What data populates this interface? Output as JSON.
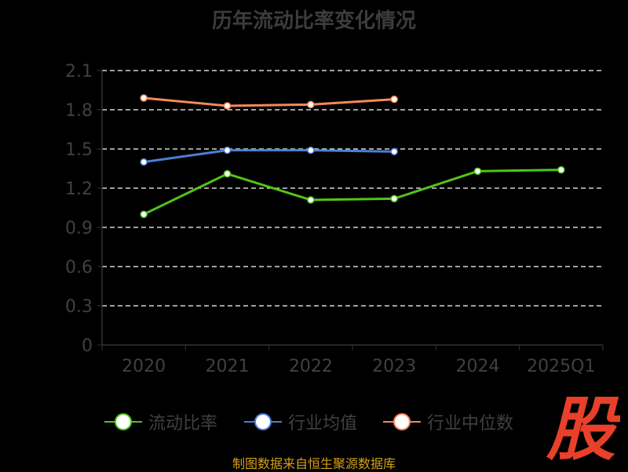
{
  "chart_data": {
    "type": "line",
    "title": "历年流动比率变化情况",
    "categories": [
      "2020",
      "2021",
      "2022",
      "2023",
      "2024",
      "2025Q1"
    ],
    "y_ticks": [
      "0",
      "0.3",
      "0.6",
      "0.9",
      "1.2",
      "1.5",
      "1.8",
      "2.1"
    ],
    "ylim": [
      0,
      2.1
    ],
    "grid": true,
    "legend_position": "bottom",
    "series": [
      {
        "name": "流动比率",
        "color": "#52c41a",
        "values": [
          1.0,
          1.31,
          1.11,
          1.12,
          1.33,
          1.34
        ]
      },
      {
        "name": "行业均值",
        "color": "#4a7fd6",
        "values": [
          1.4,
          1.49,
          1.49,
          1.48,
          null,
          null
        ]
      },
      {
        "name": "行业中位数",
        "color": "#f5895a",
        "values": [
          1.89,
          1.83,
          1.84,
          1.88,
          null,
          null
        ]
      }
    ]
  },
  "footer": {
    "source_text": "制图数据来自恒生聚源数据库",
    "watermark_char": "股"
  },
  "colors": {
    "axis": "#333333",
    "tick_label": "#404040",
    "grid": "#ffffff",
    "title": "#3c3c3c",
    "watermark": "#e8402a"
  }
}
